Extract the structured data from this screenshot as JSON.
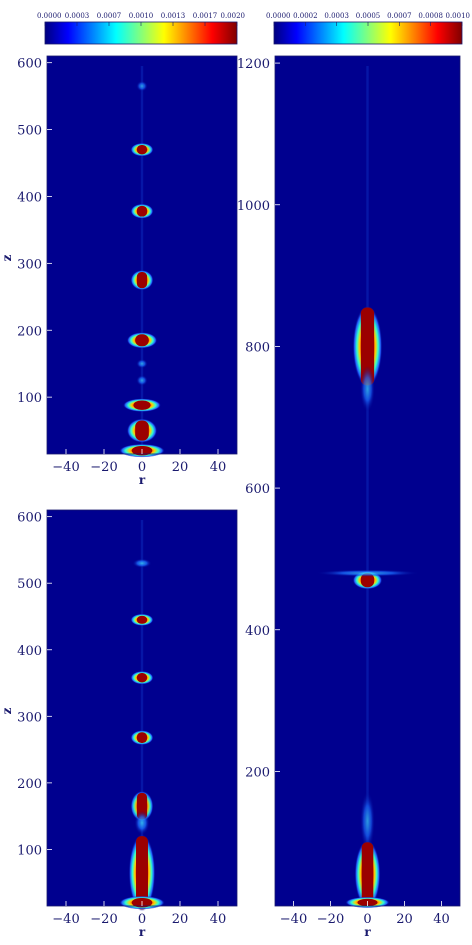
{
  "colors": {
    "background": "#00008f",
    "axis_text": "#1a1a6e",
    "colormap": [
      "#00007f",
      "#0000ff",
      "#00ffff",
      "#ffff00",
      "#ff0000",
      "#7f0000"
    ]
  },
  "chart_data": [
    {
      "id": "top-left",
      "type": "heatmap",
      "colorbar": {
        "min": 0,
        "max": 0.002,
        "tick_labels": [
          "0.0000",
          "0.0003",
          "0.0007",
          "0.0010",
          "0.0013",
          "0.0017",
          "0.0020"
        ]
      },
      "xlabel": "r",
      "ylabel": "z",
      "xlim": [
        -50,
        50
      ],
      "ylim": [
        15,
        610
      ],
      "x_ticks": [
        -40,
        -20,
        0,
        20,
        40
      ],
      "x_tick_labels": [
        "−40",
        "−20",
        "0",
        "20",
        "40"
      ],
      "y_ticks": [
        100,
        200,
        300,
        400,
        500,
        600
      ],
      "y_tick_labels": [
        "100",
        "200",
        "300",
        "400",
        "500",
        "600"
      ],
      "features": [
        {
          "r": 0,
          "z": 565,
          "height": 10,
          "width": 1.5,
          "intensity": 0.45
        },
        {
          "r": 0,
          "z": 470,
          "height": 14,
          "width": 3,
          "intensity": 0.95
        },
        {
          "r": 0,
          "z": 378,
          "height": 16,
          "width": 3,
          "intensity": 1.0
        },
        {
          "r": 0,
          "z": 275,
          "height": 24,
          "width": 3,
          "intensity": 1.0
        },
        {
          "r": 0,
          "z": 185,
          "height": 18,
          "width": 4,
          "intensity": 1.0
        },
        {
          "r": 0,
          "z": 150,
          "height": 8,
          "width": 1.5,
          "intensity": 0.5
        },
        {
          "r": 0,
          "z": 125,
          "height": 10,
          "width": 1.5,
          "intensity": 0.5
        },
        {
          "r": 0,
          "z": 88,
          "height": 14,
          "width": 5,
          "intensity": 1.0
        },
        {
          "r": 0,
          "z": 50,
          "height": 30,
          "width": 4,
          "intensity": 1.0
        },
        {
          "r": 0,
          "z": 20,
          "height": 14,
          "width": 6,
          "intensity": 1.0
        }
      ]
    },
    {
      "id": "bottom-left",
      "type": "heatmap",
      "xlabel": "r",
      "ylabel": "z",
      "xlim": [
        -50,
        50
      ],
      "ylim": [
        15,
        610
      ],
      "x_ticks": [
        -40,
        -20,
        0,
        20,
        40
      ],
      "x_tick_labels": [
        "−40",
        "−20",
        "0",
        "20",
        "40"
      ],
      "y_ticks": [
        100,
        200,
        300,
        400,
        500,
        600
      ],
      "y_tick_labels": [
        "100",
        "200",
        "300",
        "400",
        "500",
        "600"
      ],
      "features": [
        {
          "r": 0,
          "z": 530,
          "height": 8,
          "width": 2.5,
          "intensity": 0.6
        },
        {
          "r": 0,
          "z": 445,
          "height": 12,
          "width": 3,
          "intensity": 1.0
        },
        {
          "r": 0,
          "z": 358,
          "height": 14,
          "width": 3,
          "intensity": 1.0
        },
        {
          "r": 0,
          "z": 268,
          "height": 16,
          "width": 3,
          "intensity": 1.0
        },
        {
          "r": 0,
          "z": 165,
          "height": 40,
          "width": 3,
          "intensity": 0.9
        },
        {
          "r": 0,
          "z": 140,
          "height": 30,
          "width": 2,
          "intensity": 0.6
        },
        {
          "r": 0,
          "z": 65,
          "height": 110,
          "width": 3.5,
          "intensity": 1.0
        },
        {
          "r": 0,
          "z": 20,
          "height": 14,
          "width": 6,
          "intensity": 1.0
        }
      ]
    },
    {
      "id": "right",
      "type": "heatmap",
      "colorbar": {
        "min": 0,
        "max": 0.001,
        "tick_labels": [
          "0.0000",
          "0.0002",
          "0.0003",
          "0.0005",
          "0.0007",
          "0.0008",
          "0.0010"
        ]
      },
      "xlabel": "r",
      "xlim": [
        -50,
        50
      ],
      "ylim": [
        10,
        1210
      ],
      "x_ticks": [
        -40,
        -20,
        0,
        20,
        40
      ],
      "x_tick_labels": [
        "−40",
        "−20",
        "0",
        "20",
        "40"
      ],
      "y_ticks": [
        200,
        400,
        600,
        800,
        1000,
        1200
      ],
      "y_tick_labels": [
        "200",
        "400",
        "600",
        "800",
        "1000",
        "1200"
      ],
      "features": [
        {
          "r": 0,
          "z": 800,
          "height": 110,
          "width": 4,
          "intensity": 1.0
        },
        {
          "r": 0,
          "z": 740,
          "height": 60,
          "width": 2,
          "intensity": 0.45
        },
        {
          "r": 0,
          "z": 470,
          "height": 20,
          "width": 4,
          "intensity": 1.0
        },
        {
          "r": 0,
          "z": 480,
          "height": 4,
          "width": 14,
          "intensity": 0.55
        },
        {
          "r": 0,
          "z": 130,
          "height": 80,
          "width": 2,
          "intensity": 0.4
        },
        {
          "r": 0,
          "z": 55,
          "height": 90,
          "width": 3.5,
          "intensity": 1.0
        },
        {
          "r": 0,
          "z": 15,
          "height": 10,
          "width": 6,
          "intensity": 1.0
        }
      ]
    }
  ]
}
